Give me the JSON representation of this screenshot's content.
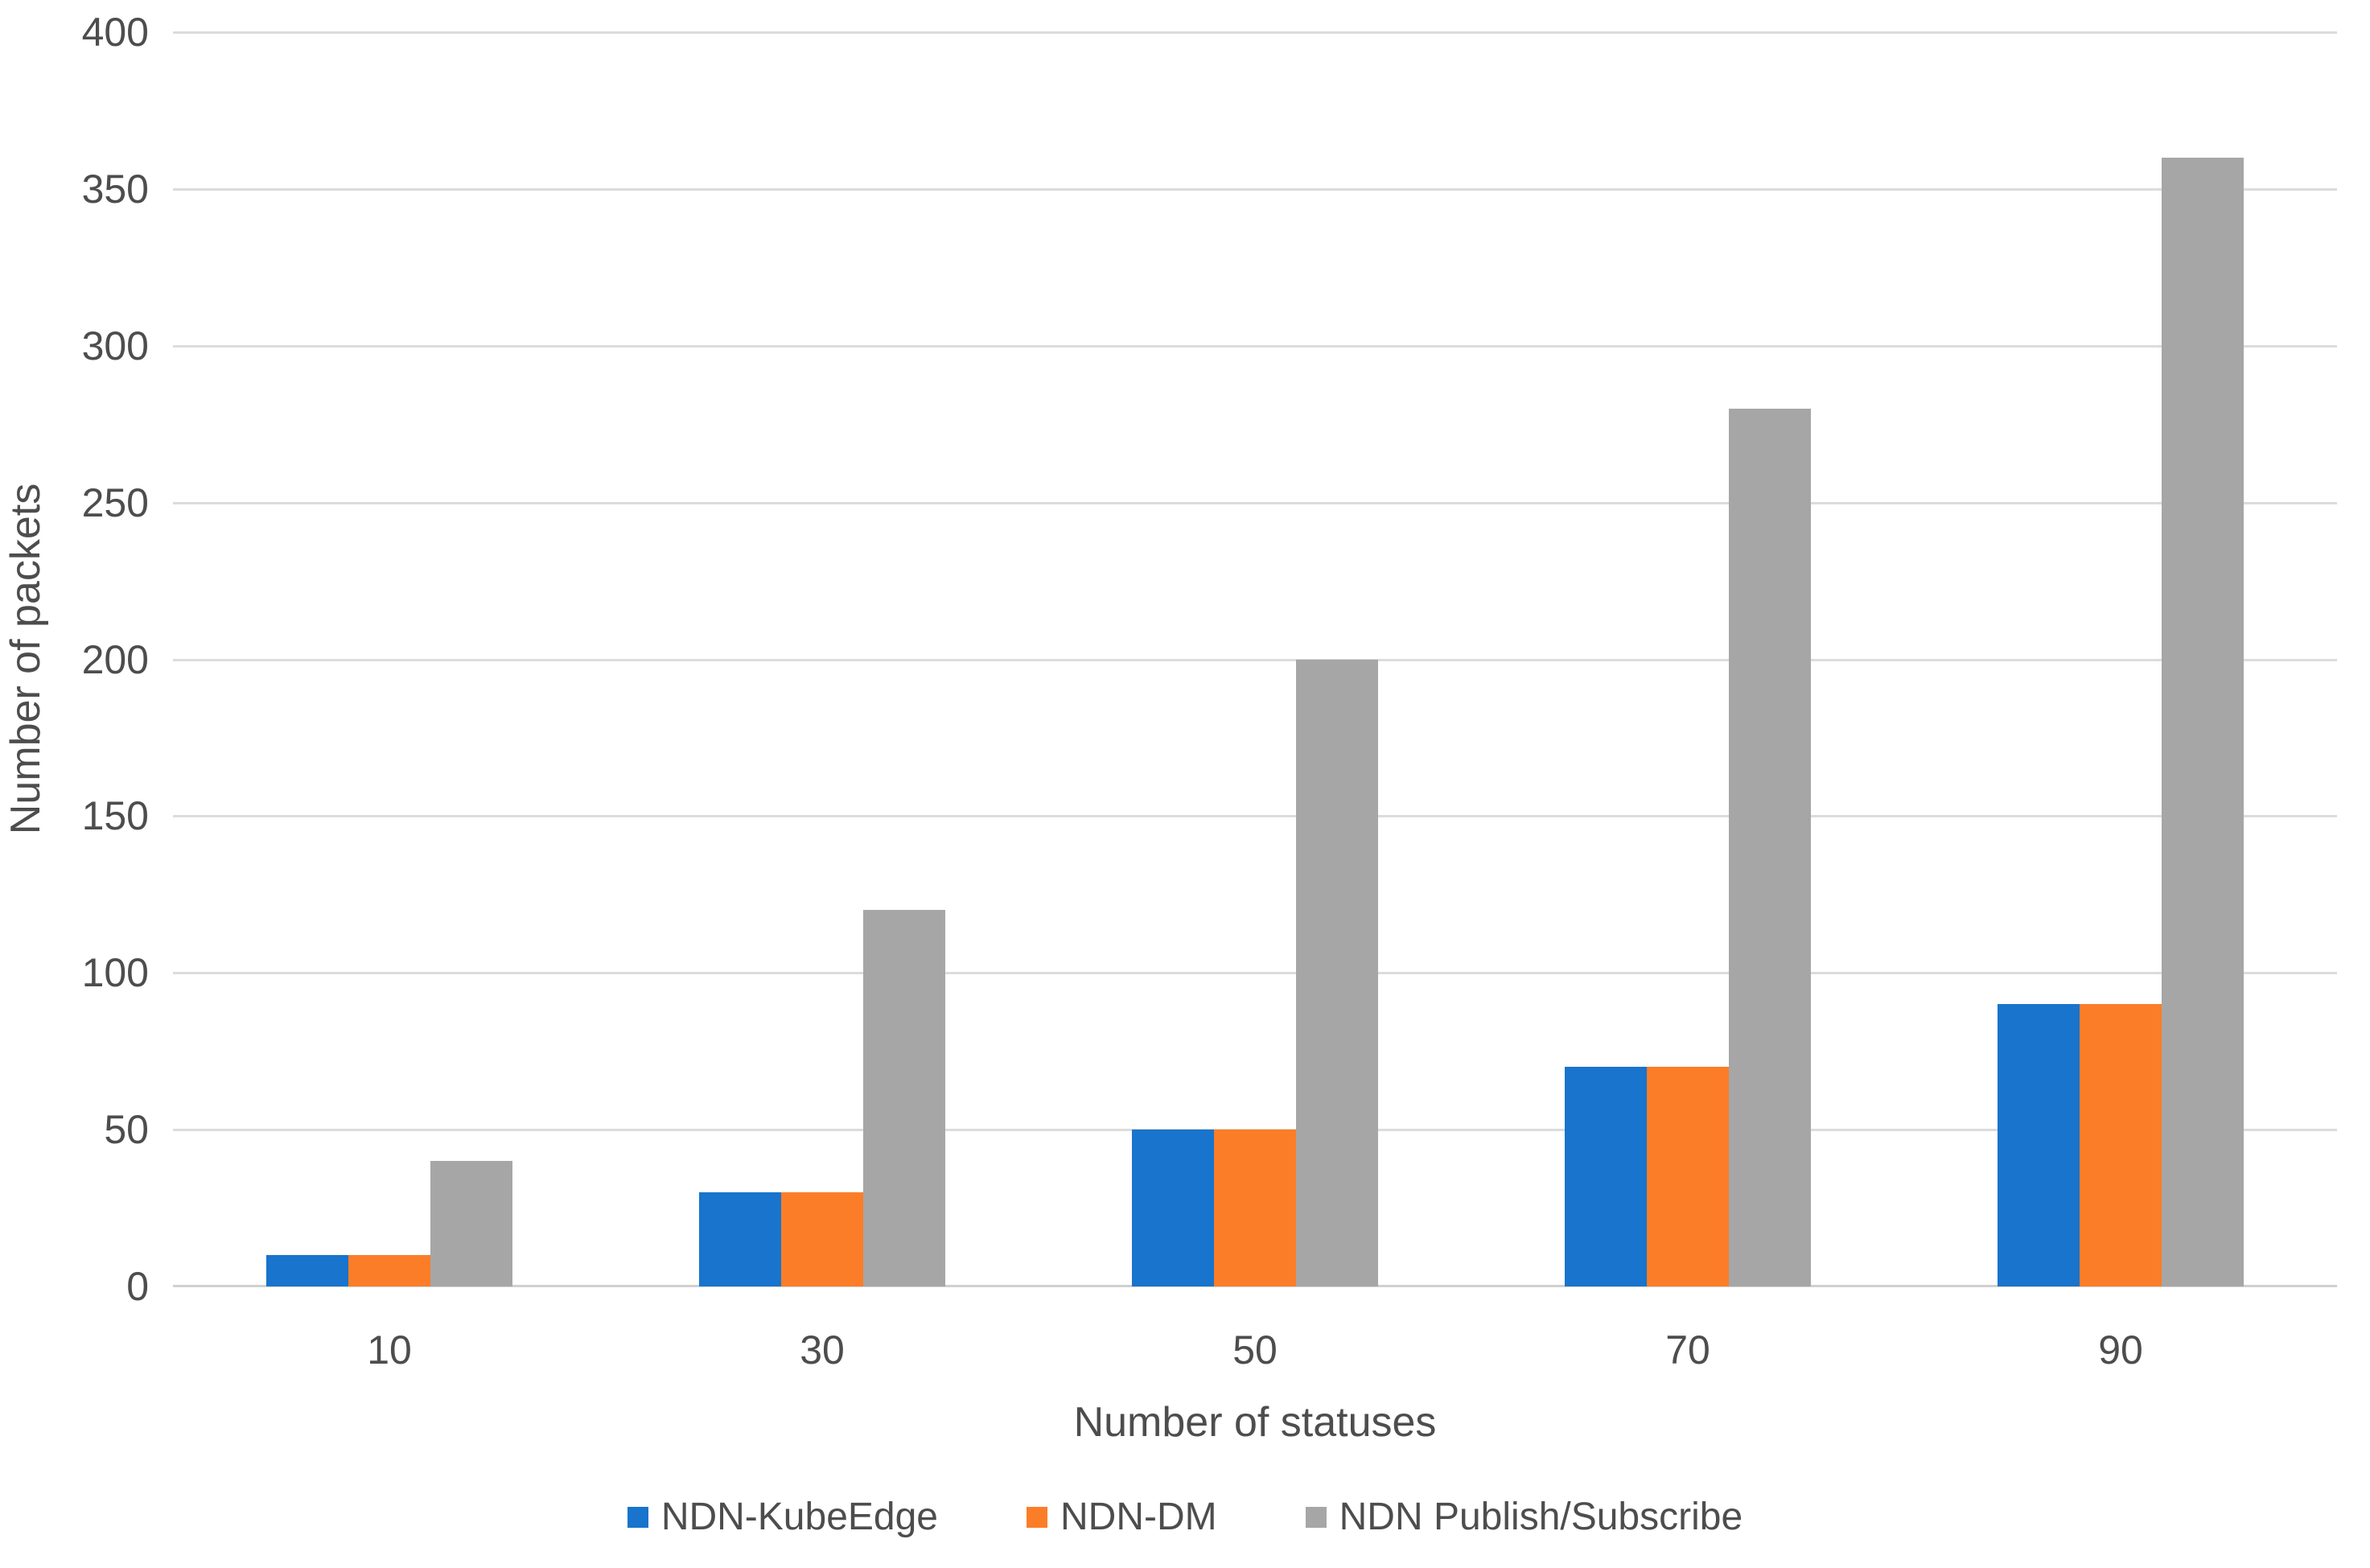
{
  "chart_data": {
    "type": "bar",
    "title": "",
    "xlabel": "Number of statuses",
    "ylabel": "Number of packets",
    "categories": [
      "10",
      "30",
      "50",
      "70",
      "90"
    ],
    "series": [
      {
        "name": "NDN-KubeEdge",
        "color": "#1874CC",
        "values": [
          10,
          30,
          50,
          70,
          90
        ]
      },
      {
        "name": "NDN-DM",
        "color": "#FC7D28",
        "values": [
          10,
          30,
          50,
          70,
          90
        ]
      },
      {
        "name": "NDN Publish/Subscribe",
        "color": "#A6A6A6",
        "values": [
          40,
          120,
          200,
          280,
          360
        ]
      }
    ],
    "ylim": [
      0,
      400
    ],
    "yticks": [
      0,
      50,
      100,
      150,
      200,
      250,
      300,
      350,
      400
    ],
    "grid": "horizontal-only",
    "gridline_color": "#dcdcdc",
    "legend_position": "bottom"
  }
}
